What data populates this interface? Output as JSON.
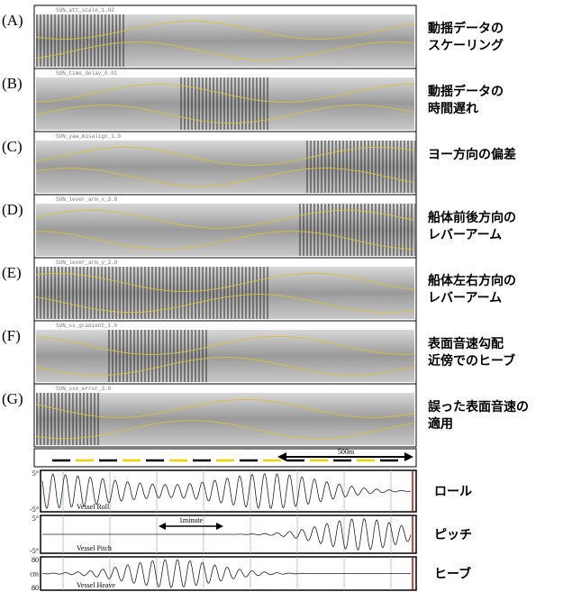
{
  "panels": [
    {
      "letter": "(A)",
      "file_label": "SUN_att_scale_1.02",
      "caption": [
        "動揺データの",
        "スケーリング"
      ]
    },
    {
      "letter": "(B)",
      "file_label": "SUN_time_delay_0.01",
      "caption": [
        "動揺データの",
        "時間遅れ"
      ]
    },
    {
      "letter": "(C)",
      "file_label": "SUN_yaw_misalign_1.0",
      "caption": [
        "ヨー方向の偏差"
      ]
    },
    {
      "letter": "(D)",
      "file_label": "SUN_lever_arm_x_3.0",
      "caption": [
        "船体前後方向の",
        "レバーアーム"
      ]
    },
    {
      "letter": "(E)",
      "file_label": "SUN_lever_arm_y_2.0",
      "caption": [
        "船体左右方向の",
        "レバーアーム"
      ]
    },
    {
      "letter": "(F)",
      "file_label": "SUN_ss_gradient_1.0",
      "caption": [
        "表面音速勾配",
        "近傍でのヒーブ"
      ]
    },
    {
      "letter": "(G)",
      "file_label": "SUN_ssv_error_3.0",
      "caption": [
        "誤った表面音速の",
        "適用"
      ]
    }
  ],
  "scale_bar": "500m",
  "time_bar": "1minute",
  "motion": [
    {
      "name": "Vessel Roll",
      "caption": "ロール",
      "axis_labels": [
        "5°",
        "-5°"
      ]
    },
    {
      "name": "Vessel Pitch",
      "caption": "ピッチ",
      "axis_labels": [
        "5°",
        "-5°"
      ]
    },
    {
      "name": "Vessel Heave",
      "caption": "ヒーブ",
      "axis_labels": [
        "80",
        "cm",
        "80"
      ]
    }
  ]
}
